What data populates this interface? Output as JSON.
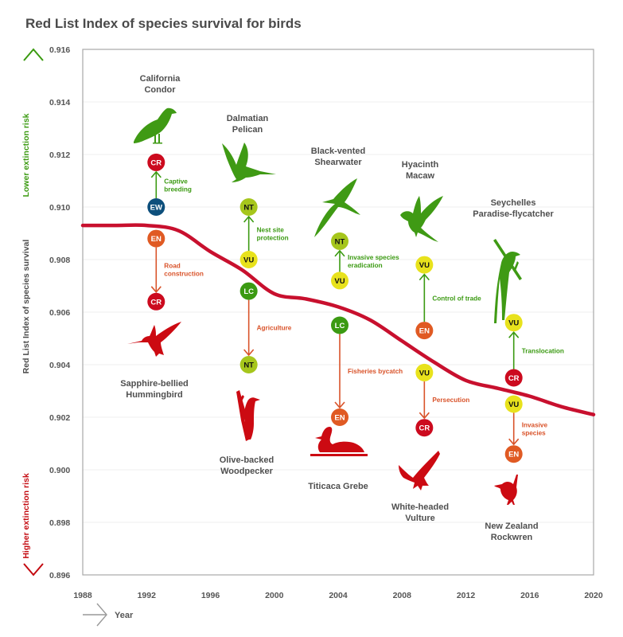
{
  "chart_data": {
    "type": "line",
    "title": "Red List Index of species survival for birds",
    "xlabel": "Year",
    "ylabel": "Red List Index of species survival",
    "ylabel_top": "Lower extinction risk",
    "ylabel_bottom": "Higher extinction risk",
    "xlim": [
      1988,
      2020
    ],
    "ylim": [
      0.896,
      0.916
    ],
    "x_ticks": [
      "1988",
      "1992",
      "1996",
      "2000",
      "2004",
      "2008",
      "2012",
      "2016",
      "2020"
    ],
    "y_ticks": [
      "0.916",
      "0.914",
      "0.912",
      "0.910",
      "0.908",
      "0.906",
      "0.904",
      "0.902",
      "0.900",
      "0.898",
      "0.896"
    ],
    "grid": "horizontal",
    "series": [
      {
        "name": "Red List Index (birds)",
        "color": "#c8102e",
        "x": [
          1988,
          1990,
          1992,
          1994,
          1996,
          1998,
          2000,
          2002,
          2004,
          2006,
          2008,
          2010,
          2012,
          2014,
          2016,
          2018,
          2020
        ],
        "values": [
          0.9093,
          0.9093,
          0.9093,
          0.9091,
          0.9083,
          0.9076,
          0.9067,
          0.9065,
          0.9062,
          0.9057,
          0.9049,
          0.9041,
          0.9034,
          0.9031,
          0.9028,
          0.9024,
          0.9021
        ]
      }
    ],
    "annotations": {
      "improving": [
        {
          "species": "California Condor",
          "year": 1992.6,
          "from": {
            "code": "EW",
            "value": 0.91
          },
          "to": {
            "code": "CR",
            "value": 0.9117
          },
          "cause": [
            "Captive",
            "breeding"
          ],
          "icon": "condor-icon"
        },
        {
          "species": "Dalmatian Pelican",
          "year": 1998.4,
          "from": {
            "code": "VU",
            "value": 0.908
          },
          "to": {
            "code": "NT",
            "value": 0.91
          },
          "cause": [
            "Nest site",
            "protection"
          ],
          "icon": "pelican-icon"
        },
        {
          "species": "Black-vented Shearwater",
          "year": 2004.1,
          "from": {
            "code": "VU",
            "value": 0.9072
          },
          "to": {
            "code": "NT",
            "value": 0.9087
          },
          "cause": [
            "Invasive species",
            "eradication"
          ],
          "icon": "shearwater-icon"
        },
        {
          "species": "Hyacinth Macaw",
          "year": 2009.4,
          "from": {
            "code": "EN",
            "value": 0.9053
          },
          "to": {
            "code": "VU",
            "value": 0.9078
          },
          "cause": [
            "Control of trade"
          ],
          "icon": "macaw-icon"
        },
        {
          "species": "Seychelles Paradise-flycatcher",
          "year": 2015,
          "from": {
            "code": "CR",
            "value": 0.9035
          },
          "to": {
            "code": "VU",
            "value": 0.9056
          },
          "cause": [
            "Translocation"
          ],
          "icon": "flycatcher-icon"
        }
      ],
      "deteriorating": [
        {
          "species": "Sapphire-bellied Hummingbird",
          "year": 1992.6,
          "from": {
            "code": "EN",
            "value": 0.9088
          },
          "to": {
            "code": "CR",
            "value": 0.9064
          },
          "cause": [
            "Road",
            "construction"
          ],
          "icon": "hummingbird-icon"
        },
        {
          "species": "Olive-backed Woodpecker",
          "year": 1998.4,
          "from": {
            "code": "LC",
            "value": 0.9068
          },
          "to": {
            "code": "NT",
            "value": 0.904
          },
          "cause": [
            "Agriculture"
          ],
          "icon": "woodpecker-icon"
        },
        {
          "species": "Titicaca Grebe",
          "year": 2004.1,
          "from": {
            "code": "LC",
            "value": 0.9055
          },
          "to": {
            "code": "EN",
            "value": 0.902
          },
          "cause": [
            "Fisheries bycatch"
          ],
          "icon": "grebe-icon"
        },
        {
          "species": "White-headed Vulture",
          "year": 2009.4,
          "from": {
            "code": "VU",
            "value": 0.9037
          },
          "to": {
            "code": "CR",
            "value": 0.9016
          },
          "cause": [
            "Persecution"
          ],
          "icon": "vulture-icon"
        },
        {
          "species": "New Zealand Rockwren",
          "year": 2015,
          "from": {
            "code": "VU",
            "value": 0.9025
          },
          "to": {
            "code": "EN",
            "value": 0.9006
          },
          "cause": [
            "Invasive",
            "species"
          ],
          "icon": "rockwren-icon"
        }
      ]
    }
  },
  "labels": {
    "condor": [
      "California",
      "Condor"
    ],
    "pelican": [
      "Dalmatian",
      "Pelican"
    ],
    "shearwater": [
      "Black-vented",
      "Shearwater"
    ],
    "macaw": [
      "Hyacinth",
      "Macaw"
    ],
    "flycatcher": [
      "Seychelles",
      "Paradise-flycatcher"
    ],
    "hummingbird": [
      "Sapphire-bellied",
      "Hummingbird"
    ],
    "woodpecker": [
      "Olive-backed",
      "Woodpecker"
    ],
    "grebe": [
      "Titicaca Grebe"
    ],
    "vulture": [
      "White-headed",
      "Vulture"
    ],
    "rockwren": [
      "New Zealand",
      "Rockwren"
    ]
  },
  "status_colors": {
    "EW": "#0d4f7c",
    "CR": "#cc0a1e",
    "EN": "#e05a23",
    "VU": "#e8e21c",
    "NT": "#a6c61c",
    "LC": "#3b9a12"
  },
  "colors": {
    "improving": "#3b9a12",
    "deteriorating": "#d9532a",
    "bird_green": "#3f9a14",
    "bird_red": "#cc0a12",
    "line": "#c8102e",
    "frame": "#a8a8a8",
    "grid": "#efefef"
  }
}
